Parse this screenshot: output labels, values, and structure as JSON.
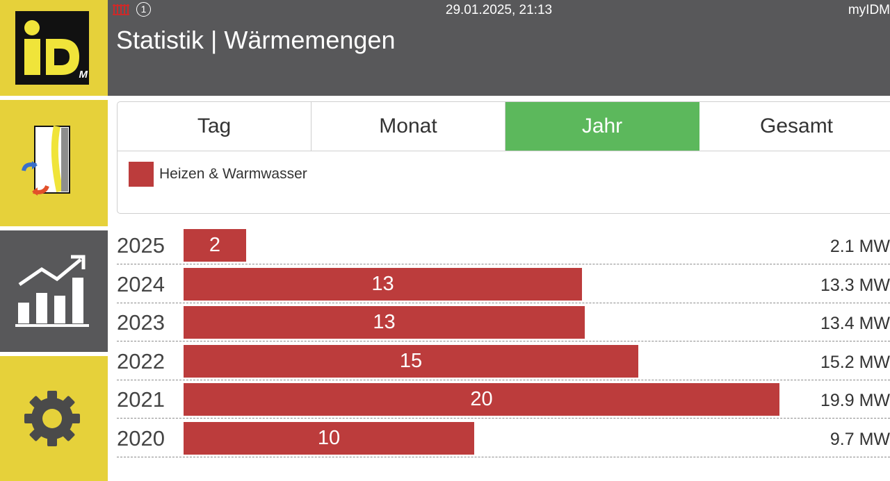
{
  "header": {
    "datetime": "29.01.2025, 21:13",
    "brand": "myIDM",
    "title": "Statistik | Wärmemengen",
    "info_badge": "1",
    "logo_text_main": "iD",
    "logo_text_sub": "M"
  },
  "colors": {
    "accent_yellow": "#e6d13a",
    "header_gray": "#58585a",
    "tab_active": "#5cb85c",
    "bar_red": "#bc3c3c",
    "heater_icon": "#cc2a2a"
  },
  "sidebar": {
    "items": [
      {
        "icon": "heat-pump-icon"
      },
      {
        "icon": "statistics-chart-icon",
        "active": true
      },
      {
        "icon": "gear-icon"
      }
    ]
  },
  "tabs": [
    {
      "label": "Tag"
    },
    {
      "label": "Monat"
    },
    {
      "label": "Jahr",
      "active": true
    },
    {
      "label": "Gesamt"
    }
  ],
  "legend": {
    "label": "Heizen & Warmwasser",
    "color": "#bc3c3c"
  },
  "chart_data": {
    "type": "bar",
    "orientation": "horizontal",
    "series": [
      {
        "name": "Heizen & Warmwasser",
        "color": "#bc3c3c"
      }
    ],
    "xlim": [
      0,
      20
    ],
    "rows": [
      {
        "year": "2025",
        "value": 2.1,
        "bar_label": "2",
        "total": "2.1 MW"
      },
      {
        "year": "2024",
        "value": 13.3,
        "bar_label": "13",
        "total": "13.3 MW"
      },
      {
        "year": "2023",
        "value": 13.4,
        "bar_label": "13",
        "total": "13.4 MW"
      },
      {
        "year": "2022",
        "value": 15.2,
        "bar_label": "15",
        "total": "15.2 MW"
      },
      {
        "year": "2021",
        "value": 19.9,
        "bar_label": "20",
        "total": "19.9 MW"
      },
      {
        "year": "2020",
        "value": 9.7,
        "bar_label": "10",
        "total": "9.7 MW"
      }
    ]
  }
}
